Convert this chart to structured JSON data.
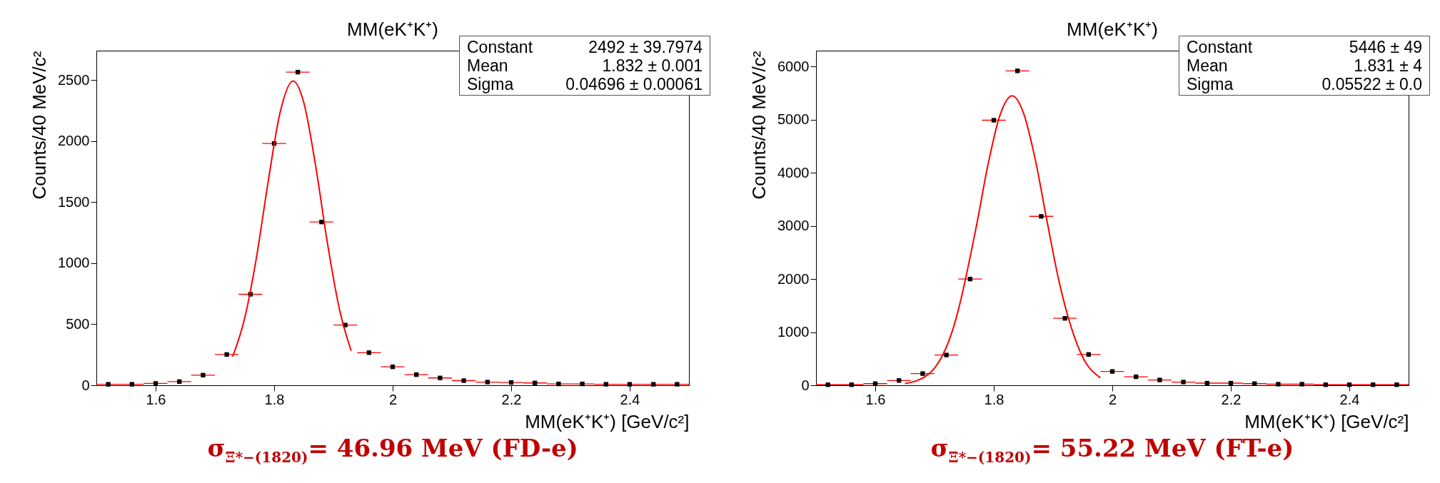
{
  "chart_data": [
    {
      "type": "scatter",
      "title": "MM(eK⁺K⁺)",
      "xlabel": "MM(eK⁺K⁺) [GeV/c²]",
      "ylabel": "Counts/40 MeV/c²",
      "xlim": [
        1.5,
        2.5
      ],
      "xticks": [
        1.6,
        1.8,
        2,
        2.2,
        2.4
      ],
      "ylim": [
        0,
        2740
      ],
      "yticks": [
        0,
        500,
        1000,
        1500,
        2000,
        2500
      ],
      "grid": false,
      "legend": false,
      "series": [
        {
          "marker": "square",
          "color": "#000000",
          "x": [
            1.52,
            1.56,
            1.6,
            1.64,
            1.68,
            1.72,
            1.76,
            1.8,
            1.84,
            1.88,
            1.92,
            1.96,
            2.0,
            2.04,
            2.08,
            2.12,
            2.16,
            2.2,
            2.24,
            2.28,
            2.32,
            2.36,
            2.4,
            2.44,
            2.48
          ],
          "values": [
            8,
            8,
            15,
            30,
            83,
            252,
            745,
            1980,
            2564,
            1337,
            493,
            267,
            151,
            87,
            60,
            38,
            26,
            23,
            19,
            11,
            11,
            8,
            8,
            8,
            8
          ],
          "xerrors": [
            0.02,
            0.02,
            0.02,
            0.02,
            0.02,
            0.02,
            0.02,
            0.02,
            0.02,
            0.02,
            0.02,
            0.02,
            0.02,
            0.02,
            0.02,
            0.02,
            0.02,
            0.02,
            0.02,
            0.02,
            0.02,
            0.02,
            0.02,
            0.02,
            0.02
          ]
        },
        {
          "type": "line",
          "marker": "none",
          "color": "#ff0000",
          "x": [
            1.73,
            1.75,
            1.77,
            1.79,
            1.81,
            1.832,
            1.85,
            1.87,
            1.89,
            1.91,
            1.93
          ],
          "values": [
            235,
            543,
            1042,
            1670,
            2233,
            2492,
            2315,
            1797,
            1162,
            627,
            282
          ]
        }
      ],
      "annotations": [
        "Constant 2492 ± 39.7974",
        "Mean 1.832 ± 0.001",
        "Sigma 0.04696 ± 0.00061",
        "σ$_{Ξ*−(1820)}$= 46.96 MeV (FD-e)"
      ]
    },
    {
      "type": "scatter",
      "title": "MM(eK⁺K⁺)",
      "xlabel": "MM(eK⁺K⁺) [GeV/c²]",
      "ylabel": "Counts/40 MeV/c²",
      "xlim": [
        1.5,
        2.5
      ],
      "xticks": [
        1.6,
        1.8,
        2,
        2.2,
        2.4
      ],
      "ylim": [
        0,
        6300
      ],
      "yticks": [
        0,
        1000,
        2000,
        3000,
        4000,
        5000,
        6000
      ],
      "grid": false,
      "legend": false,
      "series": [
        {
          "marker": "square",
          "color": "#000000",
          "x": [
            1.52,
            1.56,
            1.6,
            1.64,
            1.68,
            1.72,
            1.76,
            1.8,
            1.84,
            1.88,
            1.92,
            1.96,
            2.0,
            2.04,
            2.08,
            2.12,
            2.16,
            2.2,
            2.24,
            2.28,
            2.32,
            2.36,
            2.4,
            2.44,
            2.48
          ],
          "values": [
            10,
            10,
            30,
            90,
            220,
            570,
            2000,
            4990,
            5920,
            3180,
            1260,
            580,
            260,
            160,
            100,
            60,
            40,
            40,
            30,
            20,
            20,
            10,
            10,
            10,
            10
          ],
          "xerrors": [
            0.02,
            0.02,
            0.02,
            0.02,
            0.02,
            0.02,
            0.02,
            0.02,
            0.02,
            0.02,
            0.02,
            0.02,
            0.02,
            0.02,
            0.02,
            0.02,
            0.02,
            0.02,
            0.02,
            0.02,
            0.02,
            0.02,
            0.02,
            0.02,
            0.02
          ]
        },
        {
          "type": "line",
          "marker": "none",
          "color": "#ff0000",
          "x": [
            1.65,
            1.69,
            1.73,
            1.77,
            1.79,
            1.81,
            1.831,
            1.85,
            1.87,
            1.89,
            1.91,
            1.95,
            1.98
          ],
          "values": [
            30,
            210,
            1020,
            2960,
            4140,
            5070,
            5450,
            5130,
            4250,
            3080,
            1960,
            530,
            140
          ]
        }
      ],
      "annotations": [
        "Constant 5446 ± 49",
        "Mean 1.831 ± 4",
        "Sigma 0.05522 ± 0.0",
        "σ$_{Ξ*−(1820)}$= 55.22 MeV (FT-e)"
      ]
    }
  ]
}
